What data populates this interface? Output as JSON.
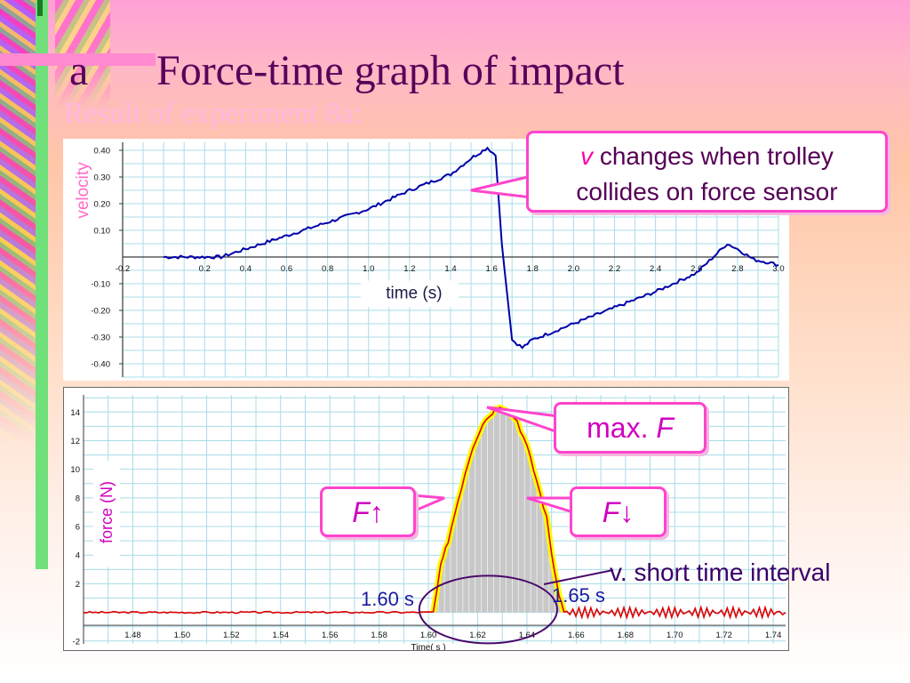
{
  "slide": {
    "label": "a",
    "title": "Force-time graph of impact",
    "subtitle": "Result of experiment 8a:"
  },
  "colors": {
    "title": "#5a005a",
    "velocity_line": "#0000aa",
    "force_line": "#dd0000",
    "force_fill": "#c8c8c8",
    "force_highlight": "#ffff00",
    "callout_border": "#ff44cc",
    "ellipse": "#4a0a6a"
  },
  "callouts": {
    "v_symbol": "v",
    "v_text_line1": "changes when trolley",
    "v_text_line2": "collides on force sensor",
    "max_prefix": "max.",
    "max_symbol": "F",
    "f_symbol": "F",
    "up_arrow": "↑",
    "down_arrow": "↓"
  },
  "annotations": {
    "short_interval": "v. short time interval",
    "t_start": "1.60 s",
    "t_end": "1.65 s"
  },
  "chart_data": [
    {
      "type": "line",
      "ylabel": "velocity",
      "xlabel": "time (s)",
      "xlim": [
        -0.2,
        3.0
      ],
      "ylim": [
        -0.45,
        0.43
      ],
      "x_ticks": [
        "-0.2",
        "0.2",
        "0.4",
        "0.6",
        "0.8",
        "1.0",
        "1.2",
        "1.4",
        "1.6",
        "1.8",
        "2.0",
        "2.2",
        "2.4",
        "2.6",
        "2.8",
        "3.0"
      ],
      "y_ticks": [
        "0.40",
        "0.30",
        "0.20",
        "0.10",
        "-0.10",
        "-0.20",
        "-0.30",
        "-0.40"
      ],
      "grid": true,
      "series": [
        {
          "x": [
            0.0,
            0.2,
            0.28,
            0.4,
            0.6,
            0.8,
            1.0,
            1.2,
            1.4,
            1.5,
            1.58,
            1.62,
            1.65,
            1.7,
            1.75,
            1.8,
            1.9,
            2.0,
            2.2,
            2.4,
            2.6,
            2.75,
            2.8,
            2.88,
            2.95,
            3.0
          ],
          "y": [
            0.0,
            0.0,
            0.0,
            0.03,
            0.08,
            0.13,
            0.18,
            0.25,
            0.31,
            0.37,
            0.41,
            0.38,
            0.05,
            -0.31,
            -0.34,
            -0.31,
            -0.28,
            -0.25,
            -0.19,
            -0.13,
            -0.06,
            0.05,
            0.03,
            -0.01,
            -0.02,
            -0.03
          ]
        }
      ]
    },
    {
      "type": "area",
      "ylabel": "force (N)",
      "xlabel": "Time( s )",
      "xlim": [
        1.46,
        1.745
      ],
      "ylim": [
        -2.2,
        15.2
      ],
      "x_ticks": [
        "1.48",
        "1.50",
        "1.52",
        "1.54",
        "1.56",
        "1.58",
        "1.60",
        "1.62",
        "1.64",
        "1.66",
        "1.68",
        "1.70",
        "1.72",
        "1.74"
      ],
      "y_ticks": [
        "14",
        "12",
        "10",
        "8",
        "6",
        "4",
        "2",
        "-2"
      ],
      "grid": true,
      "series": [
        {
          "x": [
            1.46,
            1.5,
            1.55,
            1.59,
            1.602,
            1.605,
            1.608,
            1.612,
            1.615,
            1.618,
            1.622,
            1.626,
            1.629,
            1.632,
            1.636,
            1.64,
            1.644,
            1.648,
            1.65,
            1.652,
            1.655,
            1.7,
            1.745
          ],
          "y": [
            0.0,
            0.0,
            0.0,
            0.0,
            0.0,
            3.2,
            5.0,
            7.8,
            9.8,
            11.6,
            13.2,
            14.0,
            14.5,
            14.2,
            13.4,
            11.6,
            9.2,
            6.6,
            4.2,
            2.0,
            0.0,
            0.0,
            0.0
          ]
        }
      ],
      "highlight_interval": [
        1.6,
        1.65
      ]
    }
  ]
}
